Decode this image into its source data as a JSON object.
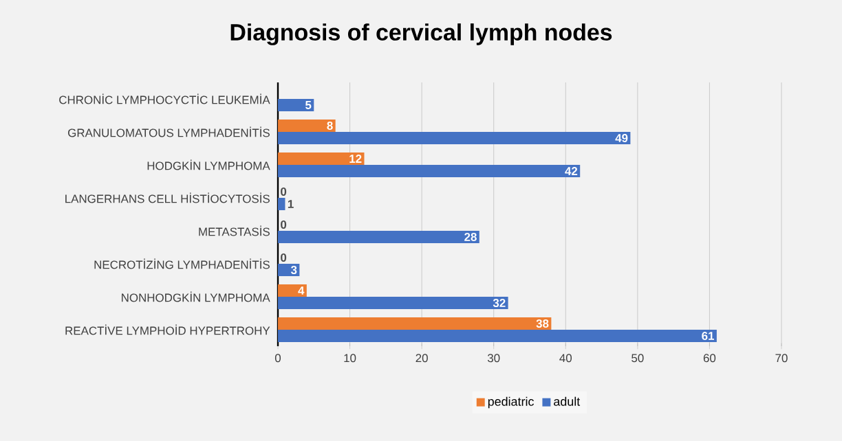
{
  "chart_data": {
    "type": "bar",
    "orientation": "horizontal",
    "title": "Diagnosis of cervical lymph nodes",
    "categories": [
      "CHRONİC LYMPHOCYCTİC LEUKEMİA",
      "GRANULOMATOUS LYMPHADENİTİS",
      "HODGKİN LYMPHOMA",
      "LANGERHANS CELL HİSTİOCYTOSİS",
      "METASTASİS",
      "NECROTİZİNG LYMPHADENİTİS",
      "NONHODGKİN LYMPHOMA",
      "REACTİVE LYMPHOİD HYPERTROHY"
    ],
    "series": [
      {
        "name": "pediatric",
        "color": "#ed7d31",
        "values": [
          null,
          8,
          12,
          0,
          0,
          0,
          4,
          38
        ]
      },
      {
        "name": "adult",
        "color": "#4472c4",
        "values": [
          5,
          49,
          42,
          1,
          28,
          3,
          32,
          61
        ]
      }
    ],
    "xlim": [
      0,
      70
    ],
    "xticks": [
      0,
      10,
      20,
      30,
      40,
      50,
      60,
      70
    ],
    "grid": "x",
    "legend": "bottom",
    "data_labels": true
  }
}
